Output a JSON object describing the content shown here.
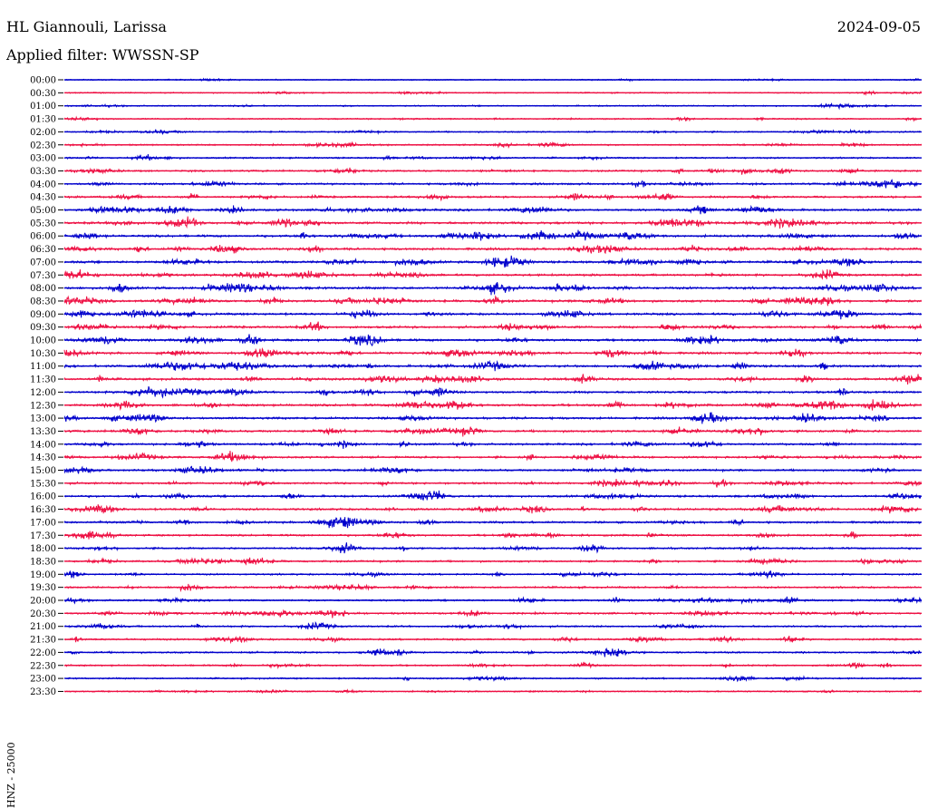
{
  "header": {
    "station": "HL Giannouli, Larissa",
    "date": "2024-09-05",
    "filter": "Applied filter: WWSSN-SP"
  },
  "channel_label": "HNZ - 25000",
  "chart_data": {
    "type": "line",
    "title": "HL Giannouli, Larissa",
    "date": "2024-09-05",
    "subtitle": "Applied filter: WWSSN-SP",
    "ylabel": "HNZ - 25000",
    "row_interval_minutes": 30,
    "rows": [
      "00:00",
      "00:30",
      "01:00",
      "01:30",
      "02:00",
      "02:30",
      "03:00",
      "03:30",
      "04:00",
      "04:30",
      "05:00",
      "05:30",
      "06:00",
      "06:30",
      "07:00",
      "07:30",
      "08:00",
      "08:30",
      "09:00",
      "09:30",
      "10:00",
      "10:30",
      "11:00",
      "11:30",
      "12:00",
      "12:30",
      "13:00",
      "13:30",
      "14:00",
      "14:30",
      "15:00",
      "15:30",
      "16:00",
      "16:30",
      "17:00",
      "17:30",
      "18:00",
      "18:30",
      "19:00",
      "19:30",
      "20:00",
      "20:30",
      "21:00",
      "21:30",
      "22:00",
      "22:30",
      "23:00",
      "23:30"
    ],
    "colors": [
      "#0000cc",
      "#ee1144"
    ],
    "relative_amplitude": [
      0.15,
      0.2,
      0.25,
      0.25,
      0.3,
      0.35,
      0.4,
      0.45,
      0.55,
      0.6,
      0.65,
      0.8,
      0.75,
      0.7,
      0.75,
      0.7,
      0.8,
      0.75,
      0.75,
      0.7,
      0.75,
      0.7,
      0.75,
      0.7,
      0.7,
      0.75,
      0.7,
      0.65,
      0.6,
      0.6,
      0.55,
      0.6,
      0.65,
      0.65,
      0.6,
      0.55,
      0.5,
      0.5,
      0.45,
      0.5,
      0.5,
      0.55,
      0.5,
      0.5,
      0.45,
      0.4,
      0.35,
      0.3
    ],
    "grid": false
  }
}
